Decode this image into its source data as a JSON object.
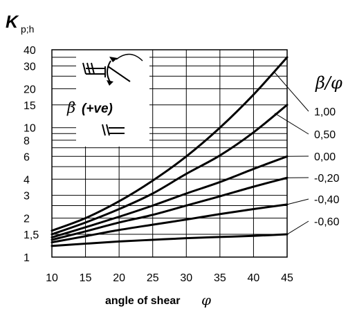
{
  "chart_data": {
    "type": "line",
    "title": "",
    "ylabel_main": "K",
    "ylabel_sub": "p;h",
    "xlabel": "angle of shear",
    "xlabel_symbol": "φ",
    "x_ticks": [
      "10",
      "15",
      "20",
      "25",
      "30",
      "35",
      "40",
      "45"
    ],
    "y_ticks": [
      {
        "value": 1,
        "label": "1"
      },
      {
        "value": 1.5,
        "label": "1,5"
      },
      {
        "value": 2,
        "label": "2"
      },
      {
        "value": 3,
        "label": "3"
      },
      {
        "value": 4,
        "label": "4"
      },
      {
        "value": 6,
        "label": "6"
      },
      {
        "value": 8,
        "label": "8"
      },
      {
        "value": 10,
        "label": "10"
      },
      {
        "value": 15,
        "label": "15"
      },
      {
        "value": 20,
        "label": "20"
      },
      {
        "value": 30,
        "label": "30"
      },
      {
        "value": 40,
        "label": "40"
      }
    ],
    "xlim": [
      10,
      45
    ],
    "ylim": [
      1,
      40
    ],
    "y_scale": "log",
    "grid": true,
    "legend_title": "β/φ",
    "legend_placement": "right",
    "inset_label_symbol": "β",
    "inset_label_text": "(+ve)",
    "x": [
      10,
      15,
      20,
      25,
      30,
      35,
      40,
      45
    ],
    "series": [
      {
        "name": "1,00",
        "values": [
          1.6,
          2.0,
          2.7,
          3.9,
          6.0,
          10.0,
          18.0,
          35.0
        ]
      },
      {
        "name": "0,50",
        "values": [
          1.5,
          1.85,
          2.35,
          3.1,
          4.4,
          6.1,
          9.2,
          15.0
        ]
      },
      {
        "name": "0,00",
        "values": [
          1.42,
          1.7,
          2.05,
          2.5,
          3.1,
          3.8,
          4.8,
          6.0
        ]
      },
      {
        "name": "-0,20",
        "values": [
          1.36,
          1.58,
          1.85,
          2.12,
          2.5,
          2.95,
          3.5,
          4.1
        ]
      },
      {
        "name": "-0,40",
        "values": [
          1.3,
          1.45,
          1.62,
          1.78,
          1.95,
          2.15,
          2.35,
          2.55
        ]
      },
      {
        "name": "-0,60",
        "values": [
          1.22,
          1.27,
          1.32,
          1.36,
          1.4,
          1.43,
          1.46,
          1.5
        ]
      }
    ]
  }
}
